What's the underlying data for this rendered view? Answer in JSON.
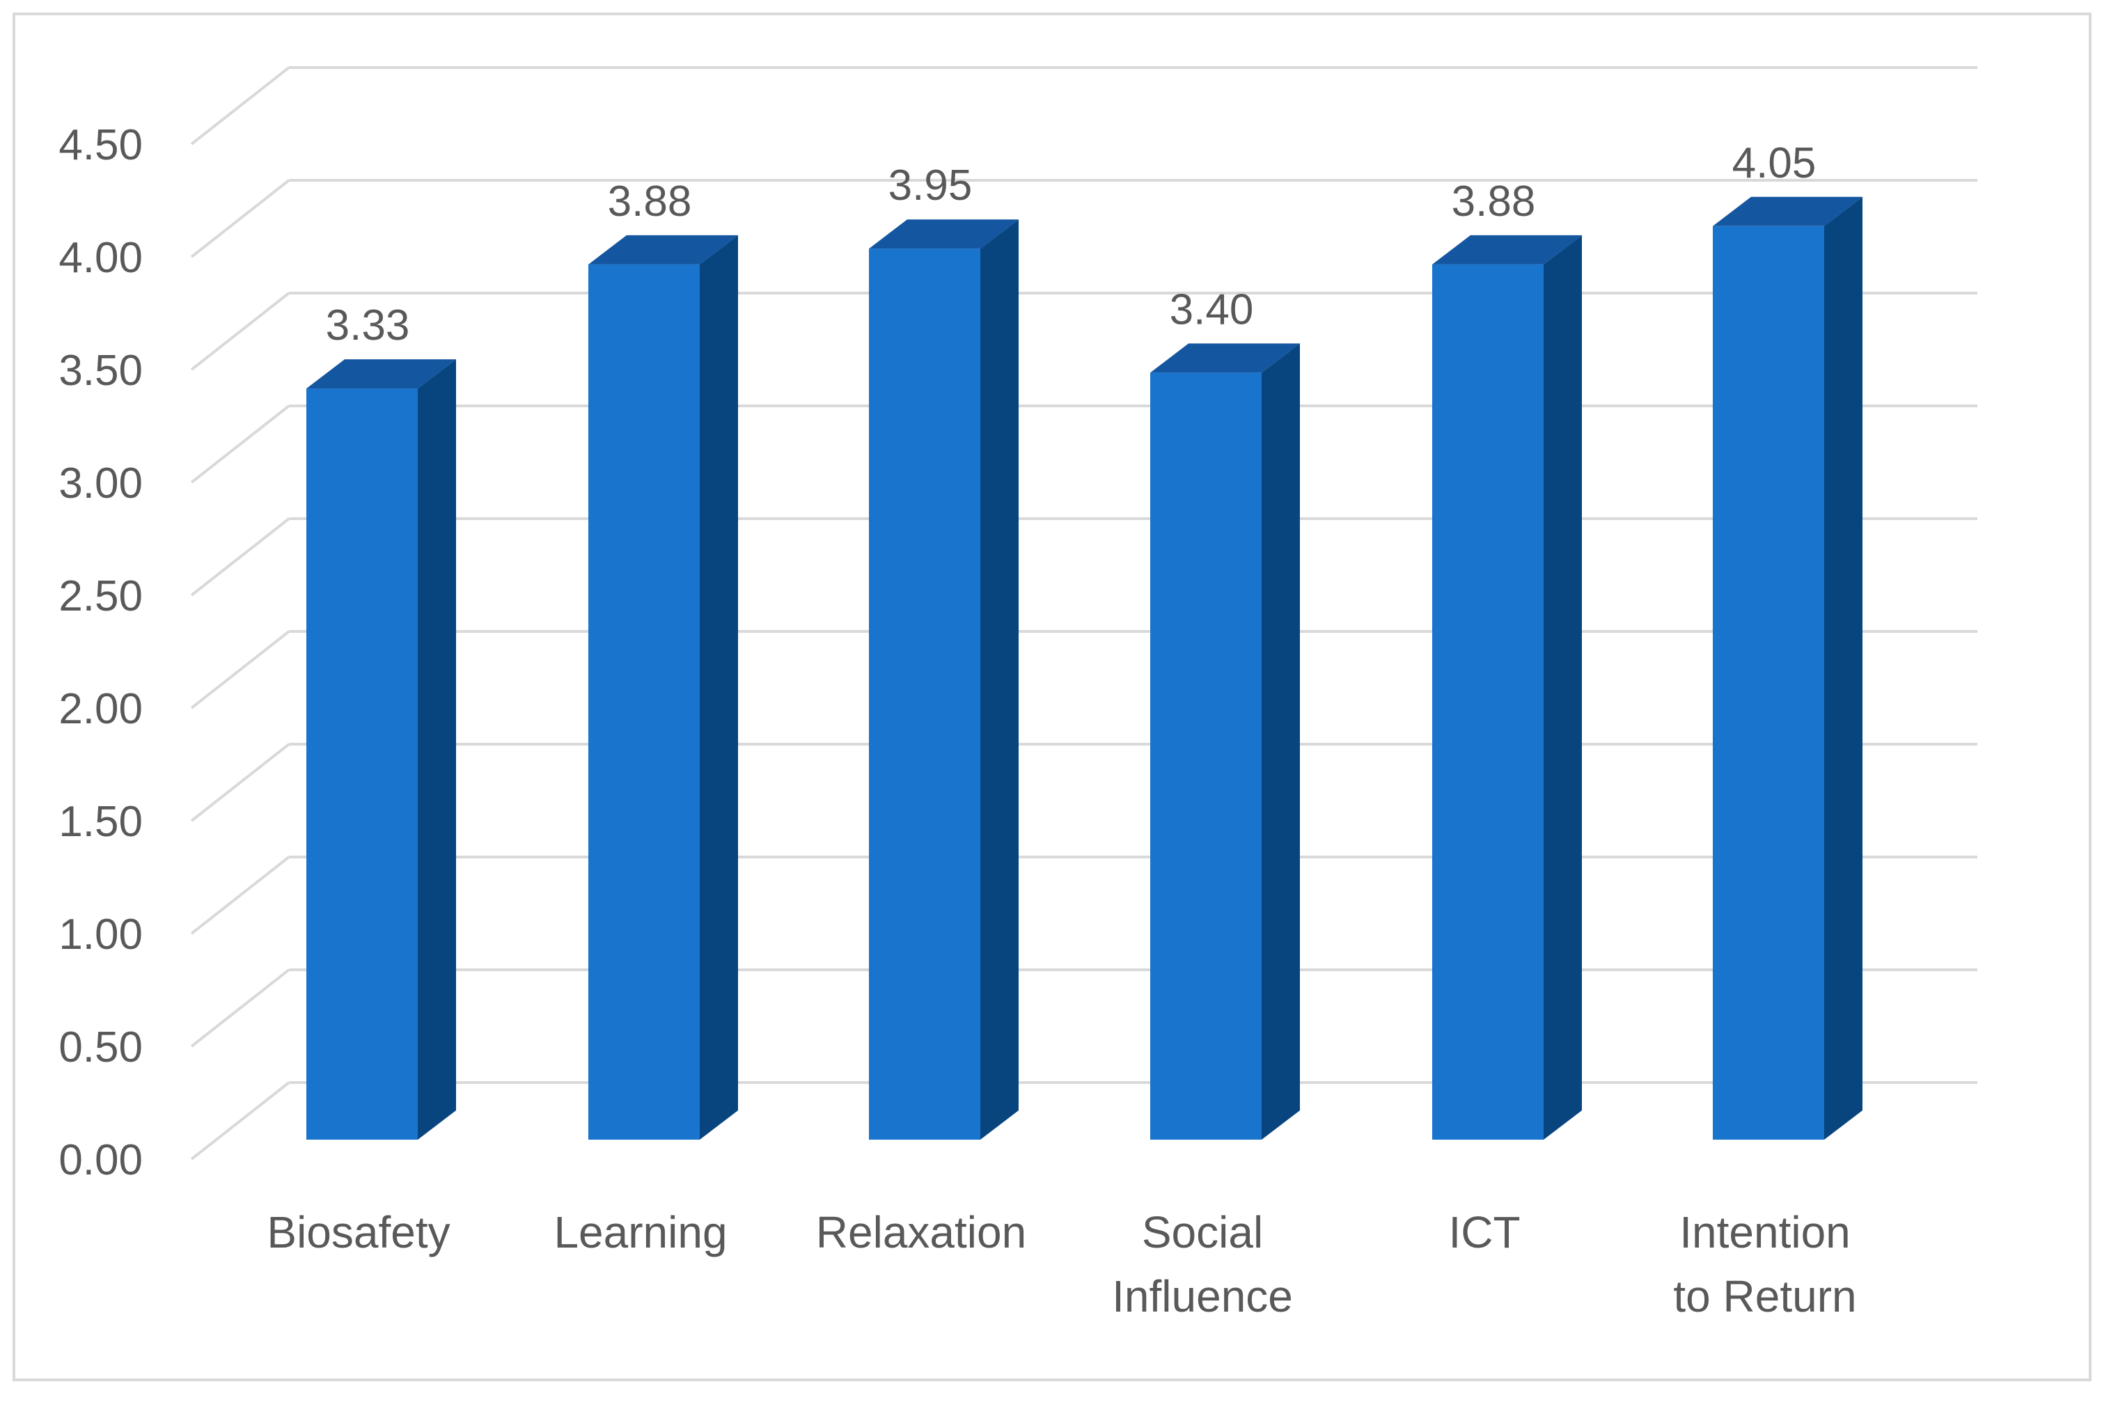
{
  "chart_data": {
    "type": "bar",
    "style": "3d-column",
    "categories": [
      "Biosafety",
      "Learning",
      "Relaxation",
      "Social Influence",
      "ICT",
      "Intention to Return"
    ],
    "category_lines": [
      [
        "Biosafety"
      ],
      [
        "Learning"
      ],
      [
        "Relaxation"
      ],
      [
        "Social",
        "Influence"
      ],
      [
        "ICT"
      ],
      [
        "Intention",
        "to Return"
      ]
    ],
    "values": [
      3.33,
      3.88,
      3.95,
      3.4,
      3.88,
      4.05
    ],
    "data_labels": [
      "3.33",
      "3.88",
      "3.95",
      "3.40",
      "3.88",
      "4.05"
    ],
    "y_ticks": [
      "0.00",
      "0.50",
      "1.00",
      "1.50",
      "2.00",
      "2.50",
      "3.00",
      "3.50",
      "4.00",
      "4.50"
    ],
    "ylim": [
      0,
      4.5
    ],
    "grid": true,
    "legend": "none",
    "colors": {
      "front": "#1874cd",
      "side": "#08457e",
      "top": "#1456a0",
      "grid": "#d9d9d9",
      "text": "#595959"
    }
  }
}
